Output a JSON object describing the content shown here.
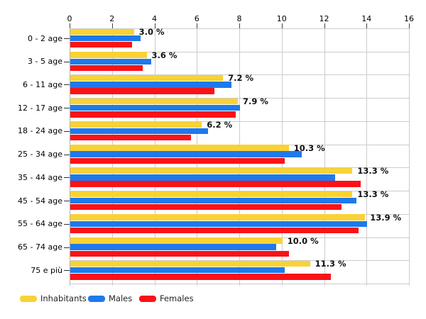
{
  "chart_data": {
    "type": "bar",
    "orientation": "horizontal",
    "title": "",
    "xlabel": "",
    "ylabel": "",
    "xlim": [
      0,
      16
    ],
    "xticks": [
      0,
      2,
      4,
      6,
      8,
      10,
      12,
      14,
      16
    ],
    "grid": true,
    "legend_position": "bottom",
    "categories": [
      "0 - 2 age",
      "3 - 5 age",
      "6 - 11 age",
      "12 - 17 age",
      "18 - 24 age",
      "25 - 34 age",
      "35 - 44 age",
      "45 - 54 age",
      "55 - 64 age",
      "65 - 74 age",
      "75 e più"
    ],
    "series": [
      {
        "name": "Inhabitants",
        "color": "#F9D235",
        "values": [
          3.0,
          3.6,
          7.2,
          7.9,
          6.2,
          10.3,
          13.3,
          13.3,
          13.9,
          10.0,
          11.3
        ]
      },
      {
        "name": "Males",
        "color": "#1E79EC",
        "values": [
          3.3,
          3.8,
          7.6,
          8.0,
          6.5,
          10.9,
          12.5,
          13.5,
          14.0,
          9.7,
          10.1
        ]
      },
      {
        "name": "Females",
        "color": "#FB1217",
        "values": [
          2.9,
          3.4,
          6.8,
          7.8,
          5.7,
          10.1,
          13.7,
          12.8,
          13.6,
          10.3,
          12.3
        ]
      }
    ],
    "bar_labels": [
      "3.0 %",
      "3.6 %",
      "7.2 %",
      "7.9 %",
      "6.2 %",
      "10.3 %",
      "13.3 %",
      "13.3 %",
      "13.9 %",
      "10.0 %",
      "11.3 %"
    ]
  },
  "colors": {
    "background": "#FFFFFF",
    "gridline": "#CCCCCC",
    "axis_line": "#B0B0B0",
    "tick": "#444444",
    "text": "#000000",
    "inhabitants": "#F9D235",
    "males": "#1E79EC",
    "females": "#FB1217"
  }
}
